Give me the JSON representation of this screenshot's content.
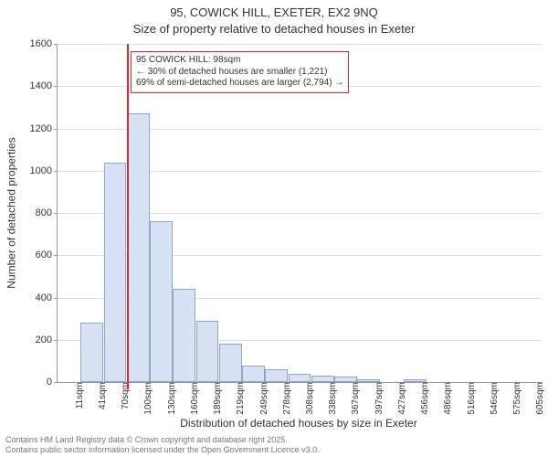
{
  "chart": {
    "type": "histogram",
    "title_main": "95, COWICK HILL, EXETER, EX2 9NQ",
    "title_sub": "Size of property relative to detached houses in Exeter",
    "ylabel": "Number of detached properties",
    "xlabel": "Distribution of detached houses by size in Exeter",
    "ylim": [
      0,
      1600
    ],
    "ytick_step": 200,
    "yticks": [
      "0",
      "200",
      "400",
      "600",
      "800",
      "1000",
      "1200",
      "1400",
      "1600"
    ],
    "xtick_labels": [
      "11sqm",
      "41sqm",
      "70sqm",
      "100sqm",
      "130sqm",
      "160sqm",
      "189sqm",
      "219sqm",
      "249sqm",
      "278sqm",
      "308sqm",
      "338sqm",
      "367sqm",
      "397sqm",
      "427sqm",
      "456sqm",
      "486sqm",
      "516sqm",
      "546sqm",
      "575sqm",
      "605sqm"
    ],
    "values": [
      0,
      280,
      1040,
      1270,
      760,
      440,
      290,
      180,
      80,
      60,
      40,
      30,
      25,
      15,
      0,
      12,
      0,
      0,
      0,
      0,
      0
    ],
    "bar_fill": "#d7e2f4",
    "bar_border": "#90a7cc",
    "grid_color": "#e0e0e0",
    "axis_color": "#999999",
    "background_color": "#ffffff",
    "marker": {
      "bin_index": 3,
      "color": "#e12828"
    },
    "annotation": {
      "border_color": "#e12828",
      "line1": "← 30% of detached houses are smaller (1,221)",
      "line2": "69% of semi-detached houses are larger (2,794) →",
      "heading": "95 COWICK HILL: 98sqm"
    },
    "title_fontsize": 13,
    "label_fontsize": 12,
    "tick_fontsize": 11
  },
  "footer": {
    "line1": "Contains HM Land Registry data © Crown copyright and database right 2025.",
    "line2": "Contains public sector information licensed under the Open Government Licence v3.0."
  }
}
